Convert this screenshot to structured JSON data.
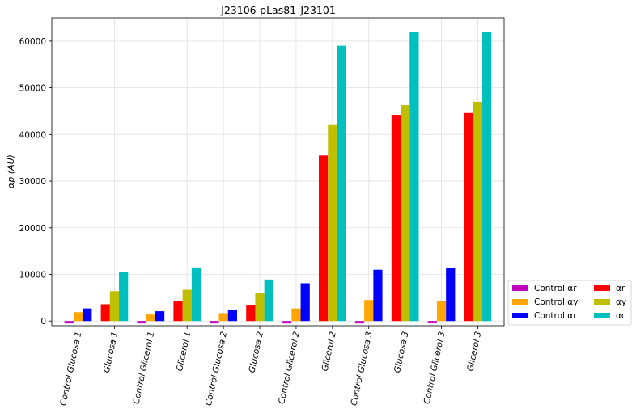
{
  "chart_data": {
    "type": "bar",
    "title": "J23106-pLas81-J23101",
    "xlabel": "",
    "ylabel": "αp (AU)",
    "ylim": [
      -1000,
      65000
    ],
    "yticks": [
      0,
      10000,
      20000,
      30000,
      40000,
      50000,
      60000
    ],
    "grid": true,
    "legend_position": "right-bottom, outside",
    "categories": [
      "Control Glucosa 1",
      "Glucosa 1",
      "Control Glicerol 1",
      "Glicerol 1",
      "Control Glucosa 2",
      "Glucosa 2",
      "Control Glicerol 2",
      "Glicerol 2",
      "Control Glucosa 3",
      "Glucosa 3",
      "Control Glicerol 3",
      "Glicerol 3"
    ],
    "series": [
      {
        "name": "Control αr",
        "color": "#bf00bf",
        "values": [
          -500,
          null,
          -500,
          null,
          -500,
          null,
          -500,
          null,
          -500,
          null,
          -300,
          null
        ]
      },
      {
        "name": "Control αy",
        "color": "#ffa500",
        "values": [
          1900,
          null,
          1400,
          null,
          1700,
          null,
          2700,
          null,
          4500,
          null,
          4200,
          null
        ]
      },
      {
        "name": "Control αr",
        "color": "#0000ff",
        "values": [
          2700,
          null,
          2100,
          null,
          2400,
          null,
          8100,
          null,
          11000,
          null,
          11400,
          null
        ]
      },
      {
        "name": "αr",
        "color": "#ff0000",
        "values": [
          null,
          3600,
          null,
          4300,
          null,
          3500,
          null,
          35500,
          null,
          44200,
          null,
          44600
        ]
      },
      {
        "name": "αy",
        "color": "#bfbf00",
        "values": [
          null,
          6400,
          null,
          6700,
          null,
          6000,
          null,
          42000,
          null,
          46300,
          null,
          47000
        ]
      },
      {
        "name": "αc",
        "color": "#00bfbf",
        "values": [
          null,
          10500,
          null,
          11500,
          null,
          8900,
          null,
          59000,
          null,
          62000,
          null,
          61900
        ]
      }
    ],
    "legend": {
      "items": [
        {
          "label": "Control αr",
          "color": "#bf00bf"
        },
        {
          "label": "Control αy",
          "color": "#ffa500"
        },
        {
          "label": "Control αr",
          "color": "#0000ff"
        },
        {
          "label": "αr",
          "color": "#ff0000"
        },
        {
          "label": "αy",
          "color": "#bfbf00"
        },
        {
          "label": "αc",
          "color": "#00bfbf"
        }
      ]
    }
  }
}
